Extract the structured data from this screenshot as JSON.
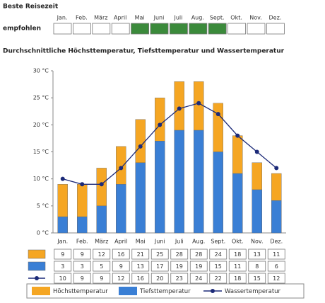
{
  "best_time": {
    "title": "Beste Reisezeit",
    "row_label": "empfohlen",
    "months": [
      "Jan.",
      "Feb.",
      "März",
      "April",
      "Mai",
      "Juni",
      "Juli",
      "Aug.",
      "Sept.",
      "Okt.",
      "Nov.",
      "Dez."
    ],
    "recommended": [
      false,
      false,
      false,
      false,
      true,
      true,
      true,
      true,
      true,
      false,
      false,
      false
    ],
    "recommended_color": "#3b8a3b"
  },
  "chart_data": {
    "type": "bar",
    "title": "Durchschnittliche Höchsttemperatur, Tiefsttemperatur und Wassertemperatur",
    "categories": [
      "Jan.",
      "Feb.",
      "März",
      "April",
      "Mai",
      "Juni",
      "Juli",
      "Aug.",
      "Sept.",
      "Okt.",
      "Nov.",
      "Dez."
    ],
    "series": [
      {
        "name": "Höchsttemperatur",
        "type": "bar",
        "color": "#f5a623",
        "values": [
          9,
          9,
          12,
          16,
          21,
          25,
          28,
          28,
          24,
          18,
          13,
          11
        ]
      },
      {
        "name": "Tiefsttemperatur",
        "type": "bar",
        "color": "#3a7fd5",
        "values": [
          3,
          3,
          5,
          9,
          13,
          17,
          19,
          19,
          15,
          11,
          8,
          6
        ]
      },
      {
        "name": "Wassertemperatur",
        "type": "line",
        "color": "#1c2a78",
        "values": [
          10,
          9,
          9,
          12,
          16,
          20,
          23,
          24,
          22,
          18,
          15,
          12
        ]
      }
    ],
    "ylim": [
      0,
      30
    ],
    "yticks": [
      {
        "value": 0,
        "label": "0 °C"
      },
      {
        "value": 5,
        "label": "5 °C"
      },
      {
        "value": 10,
        "label": "10 °C"
      },
      {
        "value": 15,
        "label": "15 °C"
      },
      {
        "value": 20,
        "label": "20 °C"
      },
      {
        "value": 25,
        "label": "25 °C"
      },
      {
        "value": 30,
        "label": "30 °C"
      }
    ]
  }
}
